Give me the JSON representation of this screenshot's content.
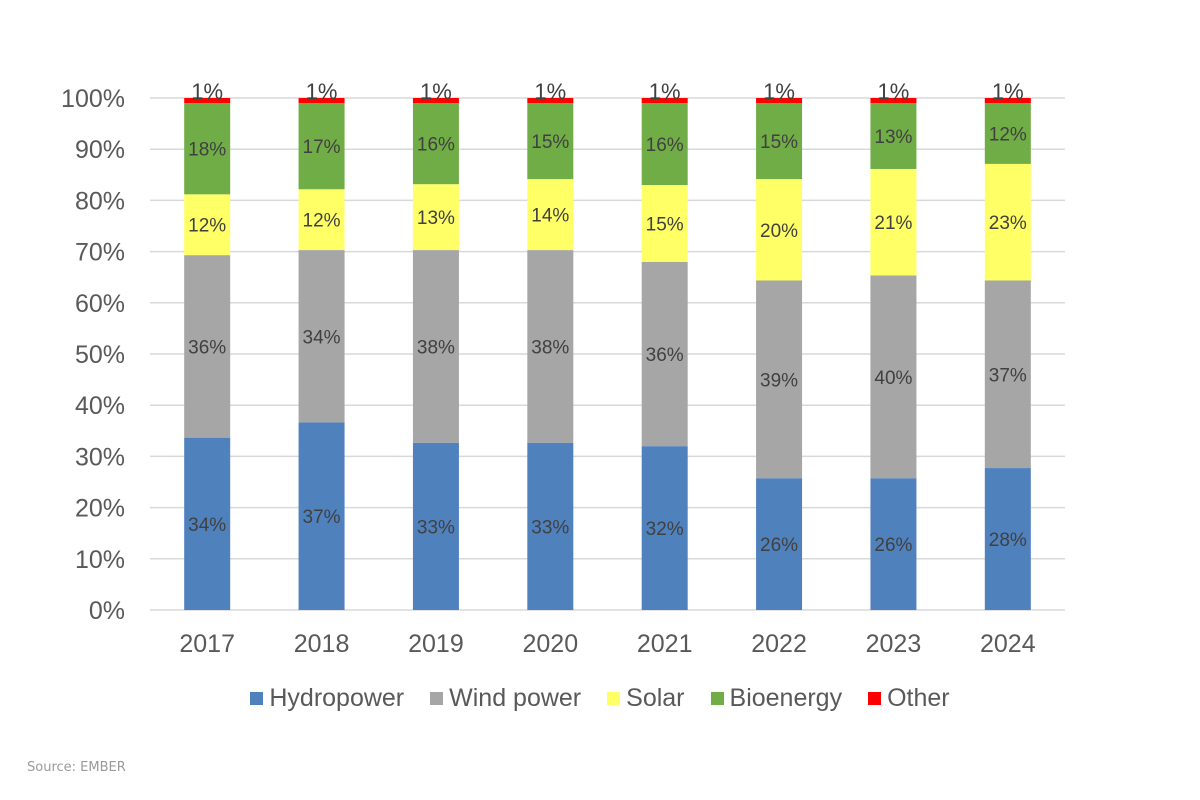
{
  "chart_data": {
    "type": "bar",
    "stacked": true,
    "normalized": true,
    "title": "",
    "xlabel": "",
    "ylabel": "",
    "ylim": [
      0,
      100
    ],
    "yticks": [
      "0%",
      "10%",
      "20%",
      "30%",
      "40%",
      "50%",
      "60%",
      "70%",
      "80%",
      "90%",
      "100%"
    ],
    "grid": true,
    "legend_position": "bottom",
    "categories": [
      "2017",
      "2018",
      "2019",
      "2020",
      "2021",
      "2022",
      "2023",
      "2024"
    ],
    "series": [
      {
        "name": "Hydropower",
        "color": "#4f81bd",
        "values": [
          34,
          37,
          33,
          33,
          32,
          26,
          26,
          28
        ]
      },
      {
        "name": "Wind power",
        "color": "#a6a6a6",
        "values": [
          36,
          34,
          38,
          38,
          36,
          39,
          40,
          37
        ]
      },
      {
        "name": "Solar",
        "color": "#ffff66",
        "values": [
          12,
          12,
          13,
          14,
          15,
          20,
          21,
          23
        ]
      },
      {
        "name": "Bioenergy",
        "color": "#70ad47",
        "values": [
          18,
          17,
          16,
          15,
          16,
          15,
          13,
          12
        ]
      },
      {
        "name": "Other",
        "color": "#ff0000",
        "values": [
          1,
          1,
          1,
          1,
          1,
          1,
          1,
          1
        ]
      }
    ],
    "data_label_suffix": "%"
  },
  "legend": [
    {
      "label": "Hydropower",
      "color": "#4f81bd"
    },
    {
      "label": "Wind power",
      "color": "#a6a6a6"
    },
    {
      "label": "Solar",
      "color": "#ffff66"
    },
    {
      "label": "Bioenergy",
      "color": "#70ad47"
    },
    {
      "label": "Other",
      "color": "#ff0000"
    }
  ],
  "source": "Source: EMBER"
}
